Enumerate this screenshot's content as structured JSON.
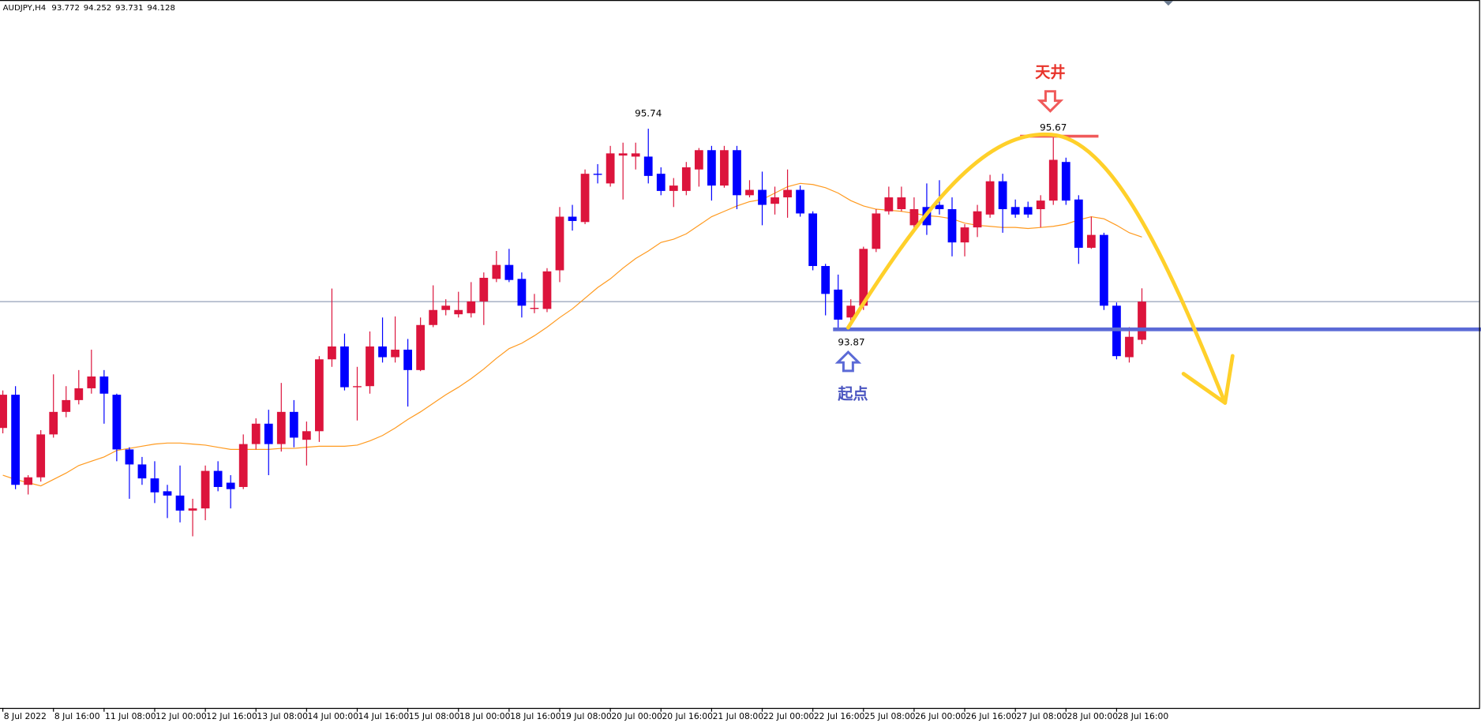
{
  "chart_data": {
    "type": "candlestick",
    "title": "AUDJPY,H4",
    "categories": [
      "8 Jul 2022",
      null,
      null,
      null,
      "8 Jul 16:00",
      null,
      null,
      null,
      "11 Jul 08:00",
      null,
      null,
      null,
      "12 Jul 00:00",
      null,
      null,
      null,
      "12 Jul 16:00",
      null,
      null,
      null,
      "13 Jul 08:00",
      null,
      null,
      null,
      "14 Jul 00:00",
      null,
      null,
      null,
      "14 Jul 16:00",
      null,
      null,
      null,
      "15 Jul 08:00",
      null,
      null,
      null,
      "18 Jul 00:00",
      null,
      null,
      null,
      "18 Jul 16:00",
      null,
      null,
      null,
      "19 Jul 08:00",
      null,
      null,
      null,
      "20 Jul 00:00",
      null,
      null,
      null,
      "20 Jul 16:00",
      null,
      null,
      null,
      "21 Jul 08:00",
      null,
      null,
      null,
      "22 Jul 00:00",
      null,
      null,
      null,
      "22 Jul 16:00",
      null,
      null,
      null,
      "25 Jul 08:00",
      null,
      null,
      null,
      "26 Jul 00:00",
      null,
      null,
      null,
      "26 Jul 16:00",
      null,
      null,
      null,
      "27 Jul 08:00",
      null,
      null,
      null,
      "28 Jul 00:00",
      null,
      null,
      null,
      "28 Jul 16:00",
      null,
      null
    ],
    "open": [
      92.95,
      93.26,
      92.42,
      92.49,
      92.89,
      93.1,
      93.21,
      93.32,
      93.43,
      93.26,
      92.75,
      92.61,
      92.48,
      92.36,
      92.32,
      92.18,
      92.2,
      92.55,
      92.44,
      92.4,
      92.8,
      92.99,
      92.8,
      93.1,
      92.84,
      92.92,
      93.59,
      93.71,
      93.33,
      93.34,
      93.71,
      93.61,
      93.68,
      93.49,
      93.91,
      94.05,
      94.01,
      94.02,
      94.13,
      94.34,
      94.47,
      94.34,
      94.06,
      94.06,
      94.42,
      94.92,
      94.87,
      95.32,
      95.23,
      95.49,
      95.48,
      95.48,
      95.32,
      95.16,
      95.16,
      95.36,
      95.54,
      95.21,
      95.54,
      95.12,
      95.17,
      95.04,
      95.1,
      95.17,
      94.95,
      94.46,
      94.24,
      93.98,
      94.09,
      94.62,
      94.97,
      94.99,
      94.84,
      95.01,
      95.03,
      94.99,
      94.68,
      94.82,
      94.94,
      95.25,
      95.01,
      95.01,
      94.99,
      95.07,
      95.43,
      95.08,
      94.63,
      94.75,
      94.09,
      93.61,
      93.772
    ],
    "high": [
      93.3,
      93.34,
      92.51,
      92.93,
      93.45,
      93.34,
      93.49,
      93.68,
      93.49,
      93.27,
      92.77,
      92.68,
      92.64,
      92.42,
      92.6,
      92.29,
      92.6,
      92.64,
      92.51,
      92.89,
      93.04,
      93.12,
      93.37,
      93.21,
      93.01,
      93.62,
      94.25,
      93.83,
      93.52,
      93.85,
      93.98,
      93.99,
      93.78,
      93.98,
      94.28,
      94.15,
      94.22,
      94.31,
      94.4,
      94.6,
      94.62,
      94.4,
      94.2,
      94.44,
      95.01,
      95.03,
      95.36,
      95.41,
      95.58,
      95.61,
      95.61,
      95.74,
      95.38,
      95.28,
      95.43,
      95.56,
      95.58,
      95.58,
      95.58,
      95.26,
      95.34,
      95.2,
      95.36,
      95.21,
      94.97,
      94.48,
      94.38,
      94.15,
      94.64,
      94.99,
      95.2,
      95.2,
      95.1,
      95.23,
      95.26,
      95.1,
      94.85,
      95.03,
      95.31,
      95.32,
      95.08,
      95.06,
      95.12,
      95.67,
      95.47,
      95.12,
      94.92,
      94.77,
      94.12,
      93.89,
      94.252
    ],
    "low": [
      92.9,
      92.38,
      92.33,
      92.45,
      92.86,
      93.05,
      93.17,
      93.27,
      92.99,
      92.64,
      92.29,
      92.42,
      92.25,
      92.11,
      92.07,
      91.94,
      92.09,
      92.36,
      92.2,
      92.38,
      92.75,
      92.51,
      92.73,
      92.77,
      92.6,
      92.82,
      93.52,
      93.3,
      93.02,
      93.27,
      93.56,
      93.56,
      93.15,
      93.48,
      93.89,
      94.0,
      93.98,
      93.98,
      93.91,
      94.31,
      94.31,
      93.98,
      94.02,
      94.03,
      94.31,
      94.79,
      94.85,
      95.23,
      95.2,
      95.08,
      95.36,
      95.23,
      95.12,
      95.01,
      95.12,
      95.2,
      95.07,
      95.19,
      94.99,
      95.1,
      94.84,
      94.94,
      94.91,
      94.92,
      94.42,
      94.0,
      93.87,
      93.92,
      94.05,
      94.59,
      94.94,
      94.97,
      94.79,
      94.75,
      94.94,
      94.55,
      94.55,
      94.73,
      94.91,
      94.77,
      94.91,
      94.91,
      94.82,
      95.03,
      95.03,
      94.48,
      94.62,
      94.05,
      93.59,
      93.56,
      93.731
    ],
    "close": [
      93.26,
      92.42,
      92.49,
      92.89,
      93.1,
      93.21,
      93.32,
      93.43,
      93.27,
      92.75,
      92.61,
      92.48,
      92.35,
      92.32,
      92.18,
      92.2,
      92.55,
      92.4,
      92.38,
      92.8,
      92.99,
      92.8,
      93.1,
      92.86,
      92.92,
      93.59,
      93.71,
      93.33,
      93.34,
      93.71,
      93.61,
      93.68,
      93.49,
      93.91,
      94.05,
      94.09,
      94.05,
      94.13,
      94.35,
      94.47,
      94.33,
      94.09,
      94.07,
      94.41,
      94.92,
      94.88,
      95.32,
      95.31,
      95.51,
      95.51,
      95.51,
      95.3,
      95.16,
      95.21,
      95.38,
      95.54,
      95.21,
      95.54,
      95.12,
      95.17,
      95.03,
      95.1,
      95.17,
      94.95,
      94.46,
      94.2,
      93.96,
      94.09,
      94.62,
      94.95,
      95.1,
      95.1,
      94.99,
      94.84,
      94.99,
      94.68,
      94.82,
      94.97,
      95.25,
      94.99,
      94.94,
      94.94,
      95.07,
      95.45,
      95.07,
      94.63,
      94.75,
      94.09,
      93.62,
      93.8,
      94.128
    ],
    "up_color": "#dc143c",
    "down_color": "#0000ff",
    "ma": {
      "color": "#ff9a1f",
      "values": [
        92.51,
        92.47,
        92.44,
        92.41,
        92.47,
        92.53,
        92.6,
        92.64,
        92.68,
        92.74,
        92.76,
        92.78,
        92.8,
        92.81,
        92.81,
        92.8,
        92.79,
        92.77,
        92.75,
        92.75,
        92.75,
        92.75,
        92.76,
        92.76,
        92.77,
        92.78,
        92.78,
        92.78,
        92.79,
        92.83,
        92.88,
        92.95,
        93.03,
        93.1,
        93.18,
        93.26,
        93.33,
        93.41,
        93.5,
        93.6,
        93.69,
        93.74,
        93.81,
        93.89,
        93.98,
        94.06,
        94.16,
        94.26,
        94.34,
        94.44,
        94.53,
        94.6,
        94.68,
        94.71,
        94.76,
        94.84,
        94.92,
        94.97,
        95.02,
        95.06,
        95.08,
        95.14,
        95.2,
        95.23,
        95.22,
        95.19,
        95.14,
        95.07,
        95.02,
        94.99,
        94.98,
        94.97,
        94.95,
        94.93,
        94.92,
        94.9,
        94.86,
        94.84,
        94.83,
        94.82,
        94.82,
        94.81,
        94.82,
        94.83,
        94.85,
        94.89,
        94.92,
        94.9,
        94.84,
        94.77,
        94.73
      ]
    },
    "ylim": [
      90.34,
      96.94
    ],
    "bid_line_color": "#7a8aa8",
    "support_color": "#5b6ad6",
    "resistance_color": "#f05a5a",
    "annotations": {
      "top": "天井",
      "start": "起点"
    }
  }
}
